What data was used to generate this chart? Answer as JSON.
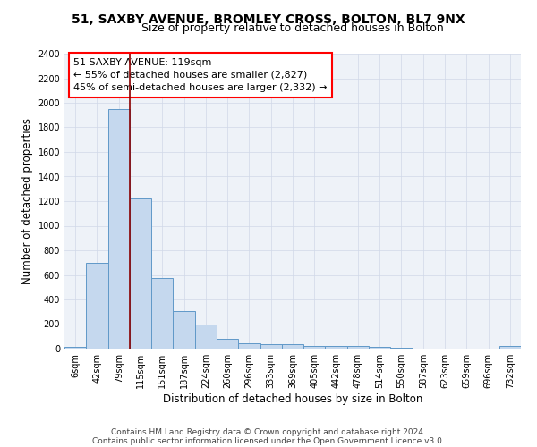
{
  "title_line1": "51, SAXBY AVENUE, BROMLEY CROSS, BOLTON, BL7 9NX",
  "title_line2": "Size of property relative to detached houses in Bolton",
  "xlabel": "Distribution of detached houses by size in Bolton",
  "ylabel": "Number of detached properties",
  "footnote_line1": "Contains HM Land Registry data © Crown copyright and database right 2024.",
  "footnote_line2": "Contains public sector information licensed under the Open Government Licence v3.0.",
  "annotation_line1": "51 SAXBY AVENUE: 119sqm",
  "annotation_line2": "← 55% of detached houses are smaller (2,827)",
  "annotation_line3": "45% of semi-detached houses are larger (2,332) →",
  "bar_categories": [
    "6sqm",
    "42sqm",
    "79sqm",
    "115sqm",
    "151sqm",
    "187sqm",
    "224sqm",
    "260sqm",
    "296sqm",
    "333sqm",
    "369sqm",
    "405sqm",
    "442sqm",
    "478sqm",
    "514sqm",
    "550sqm",
    "587sqm",
    "623sqm",
    "659sqm",
    "696sqm",
    "732sqm"
  ],
  "bar_values": [
    15,
    700,
    1950,
    1220,
    575,
    305,
    200,
    80,
    45,
    35,
    35,
    25,
    20,
    20,
    18,
    5,
    3,
    3,
    2,
    2,
    20
  ],
  "bar_color": "#c5d8ee",
  "bar_edge_color": "#6098c8",
  "vline_color": "#8b0000",
  "vline_x_idx": 3,
  "ylim": [
    0,
    2400
  ],
  "yticks": [
    0,
    200,
    400,
    600,
    800,
    1000,
    1200,
    1400,
    1600,
    1800,
    2000,
    2200,
    2400
  ],
  "grid_color": "#d0d8e8",
  "background_color": "#eef2f8",
  "title_fontsize": 10,
  "subtitle_fontsize": 9,
  "axis_label_fontsize": 8.5,
  "tick_fontsize": 7,
  "annotation_fontsize": 8,
  "footnote_fontsize": 6.5
}
